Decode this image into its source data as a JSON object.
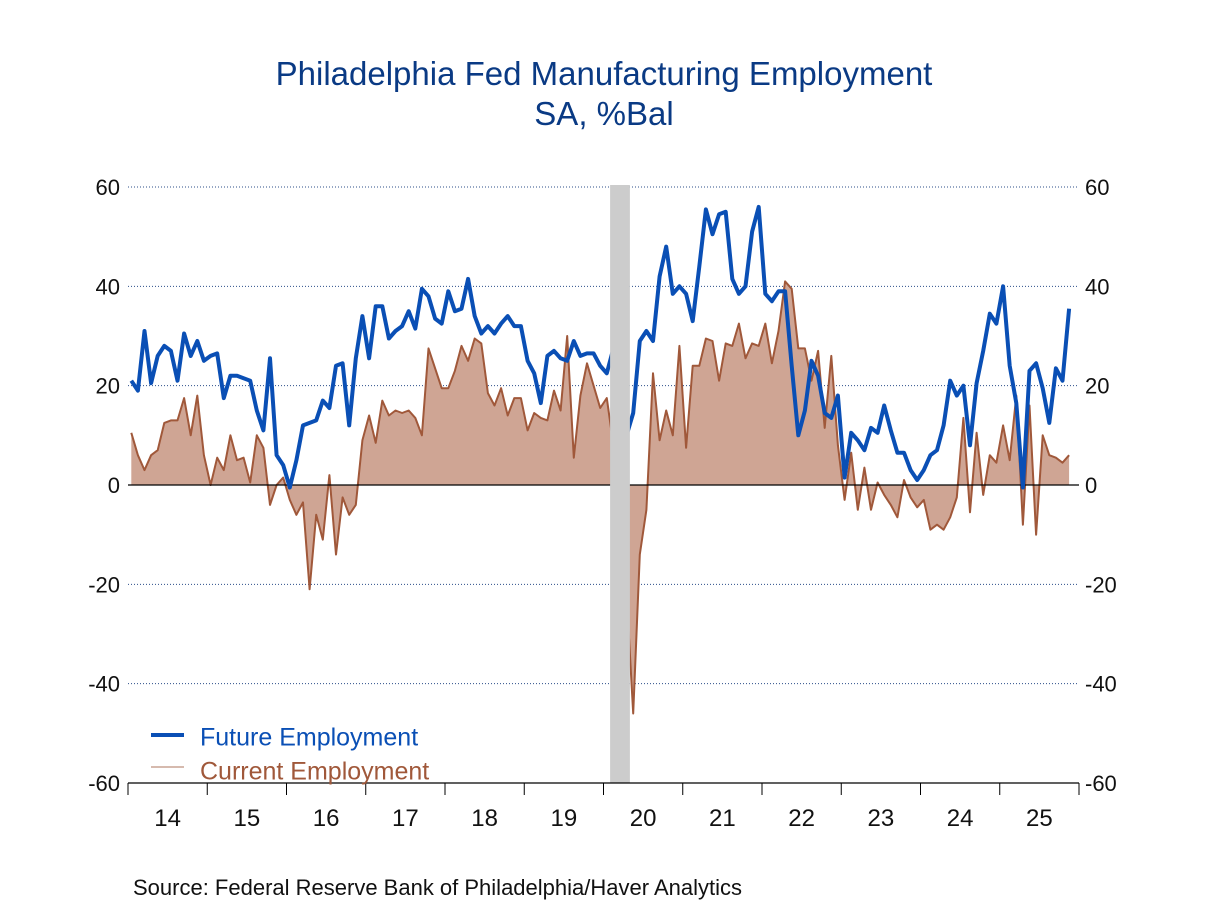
{
  "chart_data": {
    "type": "line",
    "title": "Philadelphia Fed Manufacturing Employment",
    "subtitle": "SA, %Bal",
    "source": "Source:  Federal Reserve Bank of Philadelphia/Haver Analytics",
    "xlabel": "",
    "ylabel": "",
    "ylim": [
      -60,
      60
    ],
    "yticks": [
      60,
      40,
      20,
      0,
      -20,
      -40,
      -60
    ],
    "ytick_labels": [
      "60",
      "40",
      "20",
      "0",
      "-20",
      "-40",
      "-60"
    ],
    "x_start": "2014-01",
    "x_end": "2025-12",
    "frequency": "monthly",
    "xtick_labels": [
      "14",
      "15",
      "16",
      "17",
      "18",
      "19",
      "20",
      "21",
      "22",
      "23",
      "24",
      "25"
    ],
    "grid": "horizontal dotted",
    "legend_position": "bottom-left",
    "recession_shading": [
      {
        "start": "2020-02",
        "end": "2020-04",
        "color": "#cccccc"
      }
    ],
    "series": [
      {
        "name": "Future Employment",
        "style": "line",
        "color": "#0a4fb5",
        "start": "2014-01",
        "values": [
          21,
          19,
          31,
          20.5,
          26,
          28,
          27,
          21,
          30.5,
          26,
          29,
          25,
          26,
          26.5,
          17.5,
          22,
          22,
          21.5,
          21,
          15,
          11,
          25.5,
          6,
          4,
          -0.5,
          5,
          12,
          12.5,
          13,
          17,
          15.5,
          24,
          24.5,
          12,
          25.5,
          34,
          25.5,
          36,
          36,
          29.5,
          31,
          32,
          35,
          31.5,
          39.5,
          38,
          33.5,
          32.5,
          39,
          35,
          35.5,
          41.5,
          34,
          30.5,
          32,
          30.5,
          32.5,
          34,
          32,
          32,
          25,
          22.5,
          16.5,
          26,
          27,
          25.5,
          25,
          29,
          26,
          26.5,
          26.5,
          24,
          22.5,
          27.5,
          26,
          10,
          14.5,
          29,
          31,
          29,
          42,
          48,
          38.5,
          40,
          38.5,
          33,
          44,
          55.5,
          50.5,
          54.5,
          55,
          41.5,
          38.5,
          40,
          51,
          56,
          38.5,
          37,
          39,
          39,
          24,
          10,
          15,
          25,
          22,
          14.5,
          13.5,
          18,
          1.5,
          10.5,
          9,
          7,
          11.5,
          10.5,
          16,
          11,
          6.5,
          6.5,
          3,
          1,
          3,
          6,
          7,
          12,
          21,
          18,
          20,
          8,
          20.5,
          27,
          34.5,
          32.5,
          40,
          24,
          16.5,
          -0.5,
          23,
          24.5,
          19.5,
          12.5,
          23.5,
          21,
          35.5
        ]
      },
      {
        "name": "Current Employment",
        "style": "area",
        "color": "#a0583a",
        "fill": "#cfa594",
        "start": "2014-01",
        "values": [
          10.5,
          6,
          3,
          6,
          7,
          12.5,
          13,
          13,
          17.5,
          10,
          18,
          6,
          0,
          5.5,
          3,
          10,
          5,
          5.5,
          0.5,
          10,
          7.5,
          -4,
          0,
          1.5,
          -3,
          -6,
          -3.5,
          -21,
          -6,
          -11,
          2,
          -14,
          -2.5,
          -6,
          -4,
          9,
          14,
          8.5,
          17,
          14,
          15,
          14.5,
          15,
          13.5,
          10,
          27.5,
          23.5,
          19.5,
          19.5,
          23,
          28,
          25,
          29.5,
          28.5,
          18.5,
          16,
          19.5,
          14,
          17.5,
          17.5,
          11,
          14.5,
          13.5,
          13,
          19,
          15,
          30,
          5.5,
          18,
          24.5,
          20,
          15.5,
          17.5,
          8,
          6,
          -22,
          -46,
          -14,
          -5,
          22.5,
          9,
          15,
          10,
          28,
          7.5,
          24,
          24,
          29.5,
          29,
          21,
          28.5,
          28,
          32.5,
          25.5,
          28.5,
          28,
          32.5,
          24.5,
          31,
          41,
          39.5,
          27.5,
          27.5,
          21,
          27,
          11.5,
          26,
          8,
          -3,
          6.5,
          -5,
          3.5,
          -5,
          0.5,
          -2,
          -4,
          -6.5,
          1,
          -2.5,
          -4.5,
          -3,
          -9,
          -8,
          -9,
          -6.5,
          -2.5,
          13.5,
          -5.5,
          10.5,
          -2,
          6,
          4.5,
          12,
          5,
          18,
          -8,
          16,
          -10,
          10,
          6,
          5.5,
          4.5,
          6
        ]
      }
    ]
  }
}
